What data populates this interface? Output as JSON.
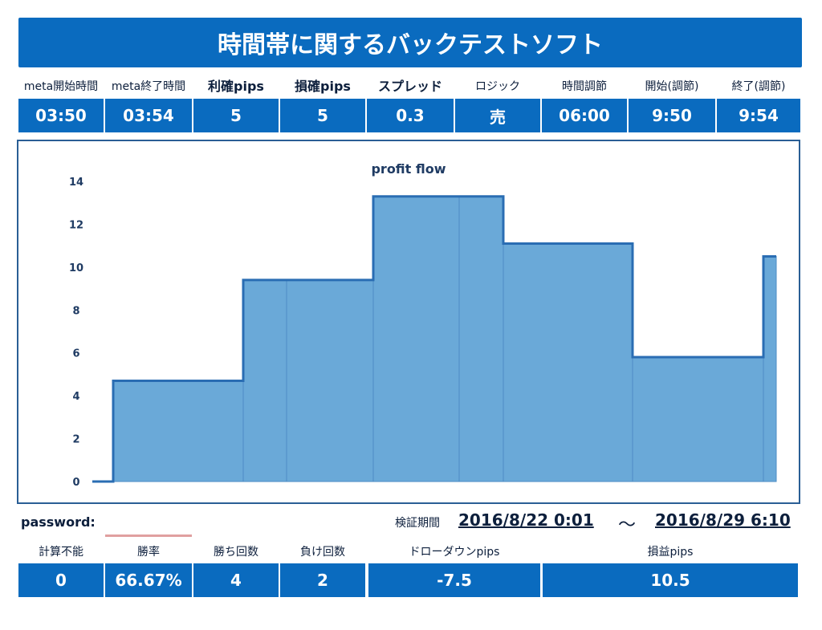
{
  "title": "時間帯に関するバックテストソフト",
  "params": [
    {
      "label": "meta開始時間",
      "value": "03:50"
    },
    {
      "label": "meta終了時間",
      "value": "03:54"
    },
    {
      "label": "利確pips",
      "value": "5"
    },
    {
      "label": "損確pips",
      "value": "5"
    },
    {
      "label": "スプレッドpips",
      "value": "0.3"
    },
    {
      "label": "ロジック",
      "value": "売"
    },
    {
      "label": "時間調節",
      "value": "06:00"
    },
    {
      "label": "開始(調節)",
      "value": "9:50"
    },
    {
      "label": "終了(調節)",
      "value": "9:54"
    }
  ],
  "chart_data": {
    "type": "area",
    "title": "profit flow",
    "ylim": [
      0,
      14
    ],
    "yticks": [
      "0",
      "2",
      "4",
      "6",
      "8",
      "10",
      "12",
      "14"
    ],
    "steps": [
      0,
      4.7,
      9.4,
      13.3,
      11.1,
      5.8,
      10.5
    ],
    "fill": "#6aa9d8",
    "stroke": "#2a6db3"
  },
  "password_label": "password:",
  "period": {
    "label": "検証期間",
    "start": "2016/8/22 0:01",
    "tilde": "～",
    "end": "2016/8/29 6:10"
  },
  "stats": [
    {
      "label": "計算不能",
      "value": "0"
    },
    {
      "label": "勝率",
      "value": "66.67%"
    },
    {
      "label": "勝ち回数",
      "value": "4"
    },
    {
      "label": "負け回数",
      "value": "2"
    },
    {
      "label": "ドローダウンpips",
      "value": "-7.5"
    },
    {
      "label": "損益pips",
      "value": "10.5"
    }
  ],
  "colors": {
    "accent": "#0a6bbf"
  }
}
